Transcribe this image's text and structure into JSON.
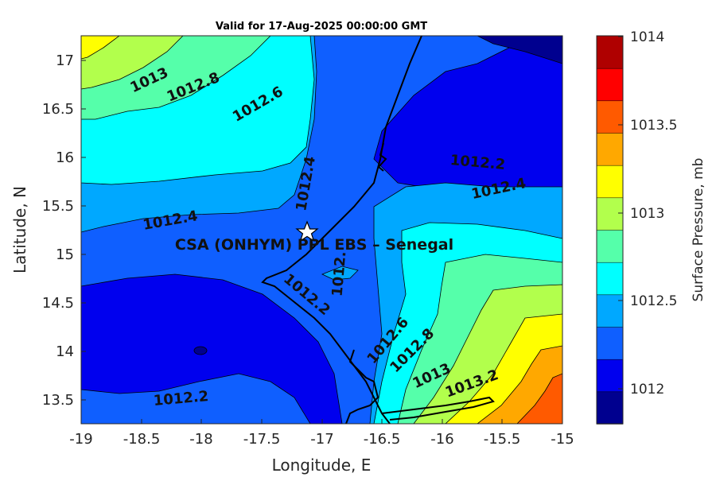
{
  "title": "Valid for 17-Aug-2025 00:00:00 GMT",
  "site_label": "CSA (ONHYM) PPL EBS  – Senegal",
  "axes": {
    "xlabel": "Longitude, E",
    "ylabel": "Latitude, N",
    "xticks": [
      "-19",
      "-18.5",
      "-18",
      "-17.5",
      "-17",
      "-16.5",
      "-16",
      "-15.5",
      "-15"
    ],
    "yticks": [
      "17",
      "16.5",
      "16",
      "15.5",
      "15",
      "14.5",
      "14",
      "13.5"
    ]
  },
  "colorbar": {
    "label": "Surface Pressure, mb",
    "ticks": [
      "1014",
      "1013.5",
      "1013",
      "1012.5",
      "1012"
    ],
    "colors": [
      "#00008f",
      "#0000ee",
      "#0f5fff",
      "#00a8ff",
      "#00ffff",
      "#55ffaa",
      "#b2ff4c",
      "#ffff00",
      "#ffa800",
      "#ff5a00",
      "#ff0000",
      "#af0000"
    ]
  },
  "chart_data": {
    "type": "contour",
    "variable": "Surface Pressure, mb",
    "xlim": [
      -19,
      -15
    ],
    "ylim": [
      13.25,
      17.25
    ],
    "clim": [
      1011.8,
      1014
    ],
    "contour_levels": [
      1012,
      1012.2,
      1012.4,
      1012.6,
      1012.8,
      1013,
      1013.2
    ],
    "contour_labels": [
      "1013",
      "1012.8",
      "1012.6",
      "1012.4",
      "1012.4",
      "1012.2",
      "1012.4",
      "1012.",
      "1012.2",
      "1012.6",
      "1012.8",
      "1013",
      "1013.2",
      "1012.2"
    ],
    "marker": {
      "lon": -17.12,
      "lat": 15.22,
      "symbol": "star"
    }
  }
}
